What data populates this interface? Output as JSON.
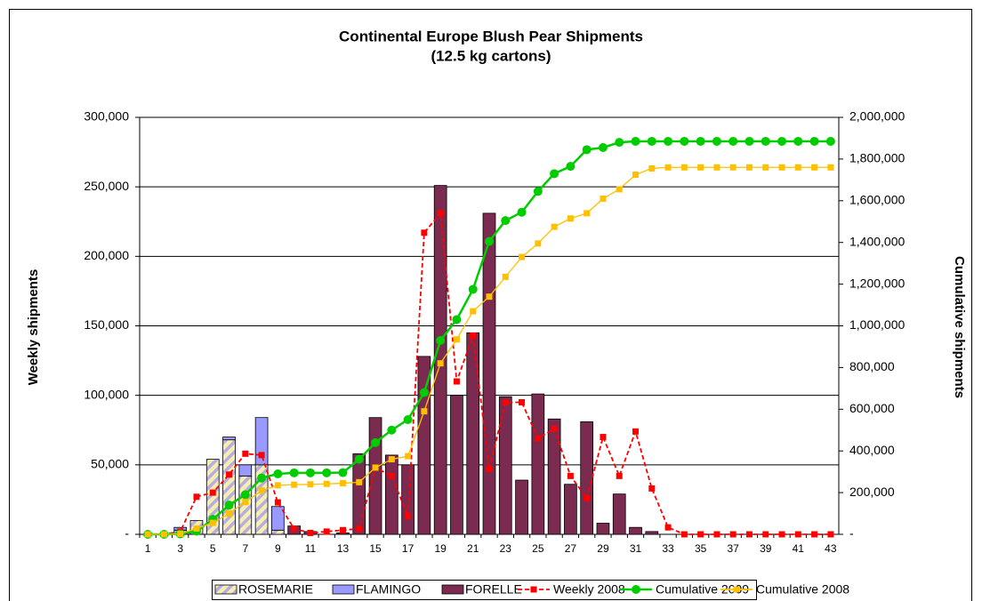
{
  "chart_data": {
    "type": "bar_line",
    "title": "Continental Europe Blush Pear Shipments",
    "subtitle": "(12.5 kg cartons)",
    "y_label": "Weekly shipments",
    "y2_label": "Cumulative shipments",
    "categories": [
      "1",
      null,
      "3",
      null,
      "5",
      null,
      "7",
      null,
      "9",
      null,
      "11",
      null,
      "13",
      null,
      "15",
      null,
      "17",
      null,
      "19",
      null,
      "21",
      null,
      "23",
      null,
      "25",
      null,
      "27",
      null,
      "29",
      null,
      "31",
      null,
      "33",
      null,
      "35",
      null,
      "37",
      null,
      "39",
      null,
      "41",
      null,
      "43"
    ],
    "ylim": [
      0,
      300000
    ],
    "yticks": [
      {
        "value": 0,
        "label": "-"
      },
      {
        "value": 50000,
        "label": "50,000"
      },
      {
        "value": 100000,
        "label": "100,000"
      },
      {
        "value": 150000,
        "label": "150,000"
      },
      {
        "value": 200000,
        "label": "200,000"
      },
      {
        "value": 250000,
        "label": "250,000"
      },
      {
        "value": 300000,
        "label": "300,000"
      }
    ],
    "y2lim": [
      0,
      2000000
    ],
    "y2ticks": [
      {
        "value": 0,
        "label": "-"
      },
      {
        "value": 200000,
        "label": "200,000"
      },
      {
        "value": 400000,
        "label": "400,000"
      },
      {
        "value": 600000,
        "label": "600,000"
      },
      {
        "value": 800000,
        "label": "800,000"
      },
      {
        "value": 1000000,
        "label": "1,000,000"
      },
      {
        "value": 1200000,
        "label": "1,200,000"
      },
      {
        "value": 1400000,
        "label": "1,400,000"
      },
      {
        "value": 1600000,
        "label": "1,600,000"
      },
      {
        "value": 1800000,
        "label": "1,800,000"
      },
      {
        "value": 2000000,
        "label": "2,000,000"
      }
    ],
    "grid": true,
    "legend": "bottom",
    "series": [
      {
        "name": "ROSEMARIE",
        "kind": "bar",
        "color": "#f4eeb0",
        "hatch_color": "#b8ace0",
        "values": [
          0,
          0,
          3000,
          10000,
          54000,
          68000,
          42000,
          50000,
          3000,
          0,
          0,
          0,
          0,
          0,
          0,
          0,
          0,
          0,
          0,
          0,
          0,
          0,
          0,
          0,
          0,
          0,
          0,
          0,
          0,
          0,
          0,
          0,
          0,
          0,
          0,
          0,
          0,
          0,
          0,
          0,
          0,
          0,
          0
        ]
      },
      {
        "name": "FLAMINGO",
        "kind": "bar",
        "color": "#9999ff",
        "values": [
          0,
          0,
          2000,
          0,
          0,
          2000,
          8000,
          34000,
          17000,
          0,
          0,
          0,
          0,
          0,
          0,
          0,
          0,
          0,
          0,
          0,
          0,
          0,
          0,
          0,
          0,
          0,
          0,
          0,
          0,
          0,
          0,
          0,
          0,
          0,
          0,
          0,
          0,
          0,
          0,
          0,
          0,
          0,
          0
        ]
      },
      {
        "name": "FORELLE",
        "kind": "bar",
        "color": "#7b2a50",
        "values": [
          0,
          0,
          0,
          0,
          0,
          0,
          0,
          0,
          0,
          6000,
          2000,
          0,
          1000,
          58000,
          84000,
          57000,
          50000,
          128000,
          251000,
          100000,
          145000,
          231000,
          99000,
          39000,
          101000,
          83000,
          36000,
          81000,
          8000,
          29000,
          5000,
          2000,
          0,
          0,
          0,
          0,
          0,
          0,
          0,
          0,
          0,
          0,
          0
        ]
      },
      {
        "name": "Weekly 2008",
        "kind": "line",
        "color": "#ff0000",
        "dashed": true,
        "marker": "square",
        "values": [
          0,
          0,
          2000,
          27000,
          30000,
          43000,
          58000,
          57000,
          23000,
          4000,
          1000,
          2000,
          3000,
          4000,
          48000,
          42000,
          13000,
          217000,
          231000,
          110000,
          143000,
          47000,
          95000,
          95000,
          69000,
          76000,
          42000,
          26000,
          70000,
          42000,
          74000,
          33000,
          5000,
          0,
          0,
          0,
          0,
          0,
          0,
          0,
          0,
          0,
          0
        ]
      },
      {
        "name": "Cumulative 2009",
        "kind": "line",
        "color": "#00cc00",
        "marker": "circle",
        "axis": "y2",
        "values": [
          0,
          0,
          2000,
          15000,
          72000,
          140000,
          190000,
          270000,
          290000,
          295000,
          295000,
          295000,
          296000,
          360000,
          440000,
          500000,
          550000,
          680000,
          930000,
          1030000,
          1175000,
          1405000,
          1505000,
          1545000,
          1645000,
          1730000,
          1765000,
          1845000,
          1855000,
          1880000,
          1885000,
          1885000,
          1885000,
          1885000,
          1885000,
          1885000,
          1885000,
          1885000,
          1885000,
          1885000,
          1885000,
          1885000,
          1885000
        ]
      },
      {
        "name": "Cumulative 2008",
        "kind": "line",
        "color": "#ffc000",
        "marker": "square",
        "axis": "y2",
        "values": [
          0,
          0,
          2000,
          28000,
          55000,
          100000,
          155000,
          210000,
          235000,
          238000,
          240000,
          242000,
          245000,
          250000,
          320000,
          360000,
          375000,
          590000,
          820000,
          935000,
          1070000,
          1140000,
          1235000,
          1330000,
          1395000,
          1475000,
          1515000,
          1540000,
          1610000,
          1655000,
          1725000,
          1755000,
          1760000,
          1760000,
          1760000,
          1760000,
          1760000,
          1760000,
          1760000,
          1760000,
          1760000,
          1760000,
          1760000
        ]
      }
    ]
  }
}
